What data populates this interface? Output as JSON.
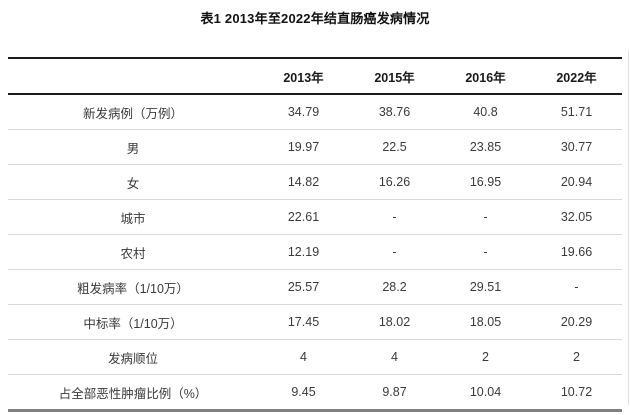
{
  "table": {
    "title": "表1 2013年至2022年结直肠癌发病情况",
    "columns": [
      "",
      "2013年",
      "2015年",
      "2016年",
      "2022年"
    ],
    "rows": [
      {
        "label": "新发病例（万例）",
        "values": [
          "34.79",
          "38.76",
          "40.8",
          "51.71"
        ]
      },
      {
        "label": "男",
        "values": [
          "19.97",
          "22.5",
          "23.85",
          "30.77"
        ]
      },
      {
        "label": "女",
        "values": [
          "14.82",
          "16.26",
          "16.95",
          "20.94"
        ]
      },
      {
        "label": "城市",
        "values": [
          "22.61",
          "-",
          "-",
          "32.05"
        ]
      },
      {
        "label": "农村",
        "values": [
          "12.19",
          "-",
          "-",
          "19.66"
        ]
      },
      {
        "label": "粗发病率（1/10万）",
        "values": [
          "25.57",
          "28.2",
          "29.51",
          "-"
        ]
      },
      {
        "label": "中标率（1/10万）",
        "values": [
          "17.45",
          "18.02",
          "18.05",
          "20.29"
        ]
      },
      {
        "label": "发病顺位",
        "values": [
          "4",
          "4",
          "2",
          "2"
        ]
      },
      {
        "label": "占全部恶性肿瘤比例（%）",
        "values": [
          "9.45",
          "9.87",
          "10.04",
          "10.72"
        ]
      }
    ],
    "colors": {
      "top_border": "#1a1a1a",
      "header_border": "#1a1a1a",
      "row_border": "#d9d9d9",
      "bottom_border": "#808080",
      "text": "#3a3a3a",
      "header_text": "#1a1a1a"
    }
  }
}
